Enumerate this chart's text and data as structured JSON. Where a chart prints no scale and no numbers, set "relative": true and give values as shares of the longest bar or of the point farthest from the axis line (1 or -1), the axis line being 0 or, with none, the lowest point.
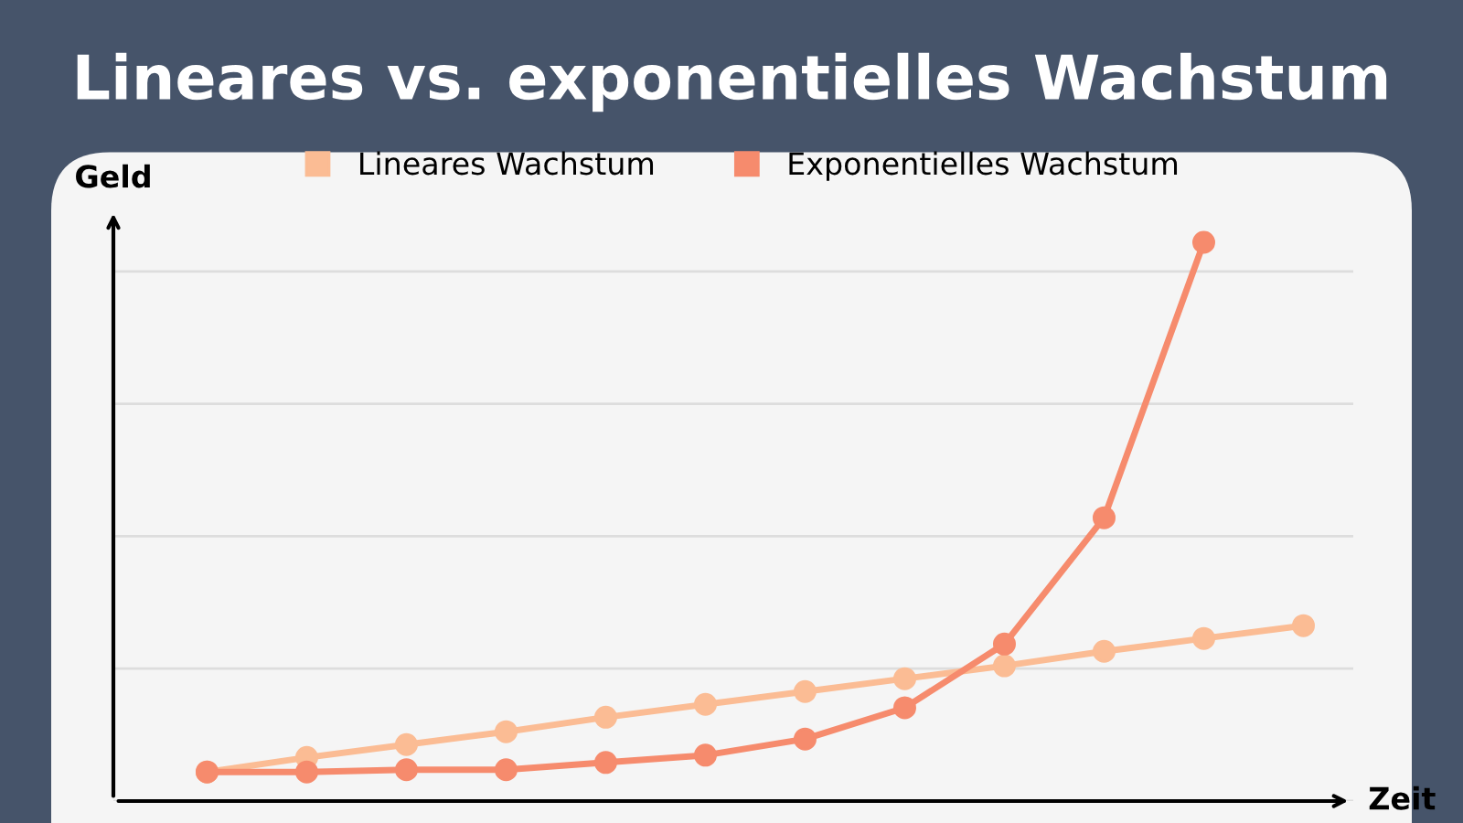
{
  "chart_data": {
    "type": "line",
    "title": "Lineares vs. exponentielles Wachstum",
    "xlabel": "Zeit",
    "ylabel": "Geld",
    "relative": true,
    "categories": [
      null,
      null,
      null,
      null,
      null,
      null,
      null,
      null,
      null,
      null,
      null,
      null
    ],
    "series": [
      {
        "name": "Lineares Wachstum",
        "color": "#fbbc94",
        "values": [
          0.052,
          0.078,
          0.101,
          0.124,
          0.15,
          0.173,
          0.196,
          0.219,
          0.242,
          0.268,
          0.291,
          0.314
        ]
      },
      {
        "name": "Exponentielles Wachstum",
        "color": "#f68b6d",
        "values": [
          0.052,
          0.052,
          0.056,
          0.056,
          0.069,
          0.082,
          0.111,
          0.167,
          0.281,
          0.507,
          1.0,
          null
        ]
      }
    ],
    "grid": "y",
    "legend": "top",
    "marker": "circle",
    "line_style": "solid"
  }
}
